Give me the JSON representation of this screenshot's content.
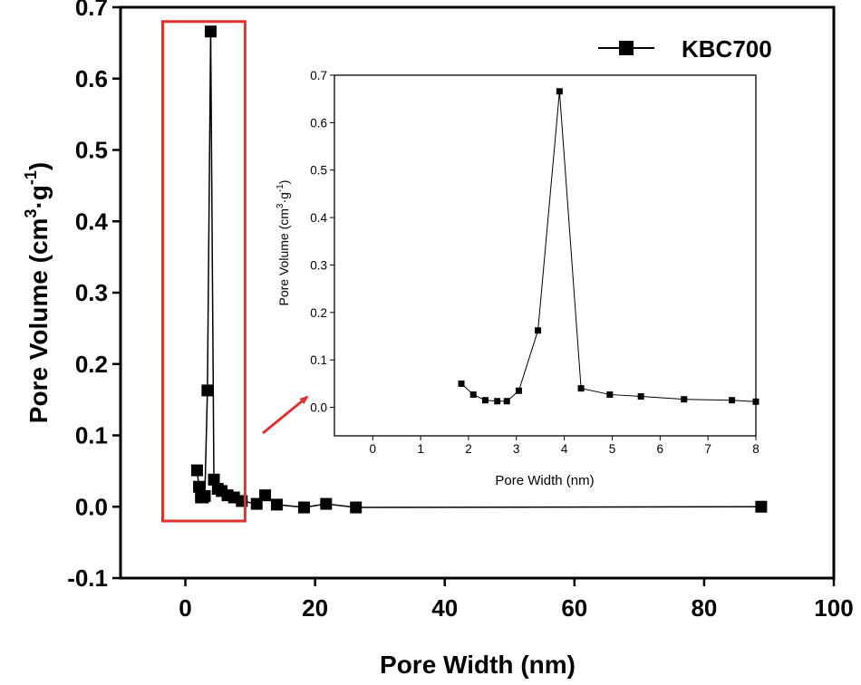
{
  "chart_data": [
    {
      "id": "main",
      "type": "line",
      "title": "",
      "xlabel": "Pore Width (nm)",
      "ylabel_parts": [
        "Pore Volume (cm",
        "3",
        "·g",
        "-1",
        ")"
      ],
      "xlim": [
        -10,
        100
      ],
      "ylim": [
        -0.1,
        0.7
      ],
      "xticks": [
        0,
        20,
        40,
        60,
        80,
        100
      ],
      "yticks": [
        -0.1,
        0.0,
        0.1,
        0.2,
        0.3,
        0.4,
        0.5,
        0.6,
        0.7
      ],
      "xtick_labels": [
        "0",
        "20",
        "40",
        "60",
        "80",
        "100"
      ],
      "ytick_labels": [
        "-0.1",
        "0.0",
        "0.1",
        "0.2",
        "0.3",
        "0.4",
        "0.5",
        "0.6",
        "0.7"
      ],
      "legend": {
        "position": "top-right",
        "entries": [
          "KBC700"
        ]
      },
      "series": [
        {
          "name": "KBC700",
          "marker": "square",
          "color": "#000000",
          "points": [
            [
              1.8,
              0.051
            ],
            [
              2.1,
              0.028
            ],
            [
              2.4,
              0.013
            ],
            [
              2.7,
              0.013
            ],
            [
              3.0,
              0.015
            ],
            [
              3.4,
              0.163
            ],
            [
              3.9,
              0.666
            ],
            [
              4.4,
              0.038
            ],
            [
              5.0,
              0.025
            ],
            [
              5.6,
              0.022
            ],
            [
              6.5,
              0.016
            ],
            [
              7.5,
              0.013
            ],
            [
              8.7,
              0.008
            ],
            [
              11.0,
              0.004
            ],
            [
              12.3,
              0.016
            ],
            [
              14.1,
              0.003
            ],
            [
              18.3,
              -0.001
            ],
            [
              21.7,
              0.004
            ],
            [
              26.3,
              -0.001
            ],
            [
              88.8,
              0.0
            ]
          ]
        }
      ],
      "highlight_box": {
        "x_range": [
          -3.5,
          9.2
        ],
        "y_range": [
          -0.02,
          0.68
        ],
        "color": "#e03030"
      }
    },
    {
      "id": "inset",
      "type": "line",
      "title": "",
      "xlabel": "Pore Width (nm)",
      "ylabel_parts": [
        "Pore Volume (cm",
        "3",
        "·g",
        "-1",
        ")"
      ],
      "xlim": [
        -0.8,
        8
      ],
      "ylim": [
        -0.06,
        0.7
      ],
      "xticks": [
        0,
        1,
        2,
        3,
        4,
        5,
        6,
        7,
        8
      ],
      "yticks": [
        0.0,
        0.1,
        0.2,
        0.3,
        0.4,
        0.5,
        0.6,
        0.7
      ],
      "xtick_labels": [
        "0",
        "1",
        "2",
        "3",
        "4",
        "5",
        "6",
        "7",
        "8"
      ],
      "ytick_labels": [
        "0.0",
        "0.1",
        "0.2",
        "0.3",
        "0.4",
        "0.5",
        "0.6",
        "0.7"
      ],
      "series": [
        {
          "name": "KBC700",
          "marker": "square",
          "color": "#000000",
          "points": [
            [
              1.85,
              0.05
            ],
            [
              2.1,
              0.027
            ],
            [
              2.35,
              0.015
            ],
            [
              2.6,
              0.013
            ],
            [
              2.8,
              0.013
            ],
            [
              3.05,
              0.035
            ],
            [
              3.45,
              0.162
            ],
            [
              3.9,
              0.666
            ],
            [
              4.35,
              0.04
            ],
            [
              4.95,
              0.027
            ],
            [
              5.6,
              0.023
            ],
            [
              6.5,
              0.017
            ],
            [
              7.5,
              0.015
            ],
            [
              8.0,
              0.012
            ]
          ]
        }
      ]
    }
  ],
  "colors": {
    "axis": "#000000",
    "highlight": "#e03030",
    "arrow": "#e03030"
  }
}
